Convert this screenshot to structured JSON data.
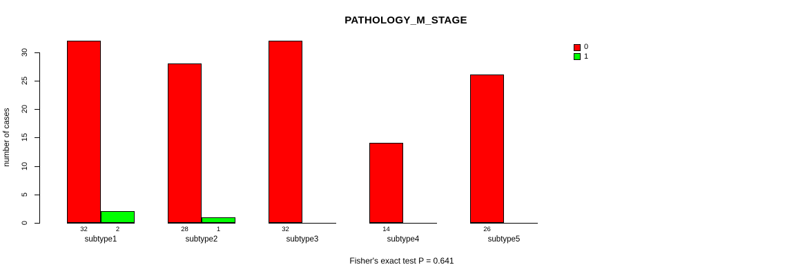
{
  "chart_data": {
    "type": "bar",
    "title": "PATHOLOGY_M_STAGE",
    "xlabel": "",
    "ylabel": "number of cases",
    "footnote": "Fisher's exact test P = 0.641",
    "categories": [
      "subtype1",
      "subtype2",
      "subtype3",
      "subtype4",
      "subtype5"
    ],
    "series": [
      {
        "name": "0",
        "color": "#ff0000",
        "values": [
          32,
          28,
          32,
          14,
          26
        ]
      },
      {
        "name": "1",
        "color": "#00ff00",
        "values": [
          2,
          1,
          0,
          0,
          0
        ]
      }
    ],
    "bar_count_labels": [
      [
        "32",
        "2"
      ],
      [
        "28",
        "1"
      ],
      [
        "32",
        ""
      ],
      [
        "14",
        ""
      ],
      [
        "26",
        ""
      ]
    ],
    "ylim": [
      0,
      30
    ],
    "yticks": [
      0,
      5,
      10,
      15,
      20,
      25,
      30
    ],
    "grid": false,
    "legend_position": "top-right",
    "colors": {
      "background": "#ffffff",
      "axis": "#000000",
      "text": "#000000",
      "bar_border": "#000000"
    }
  }
}
